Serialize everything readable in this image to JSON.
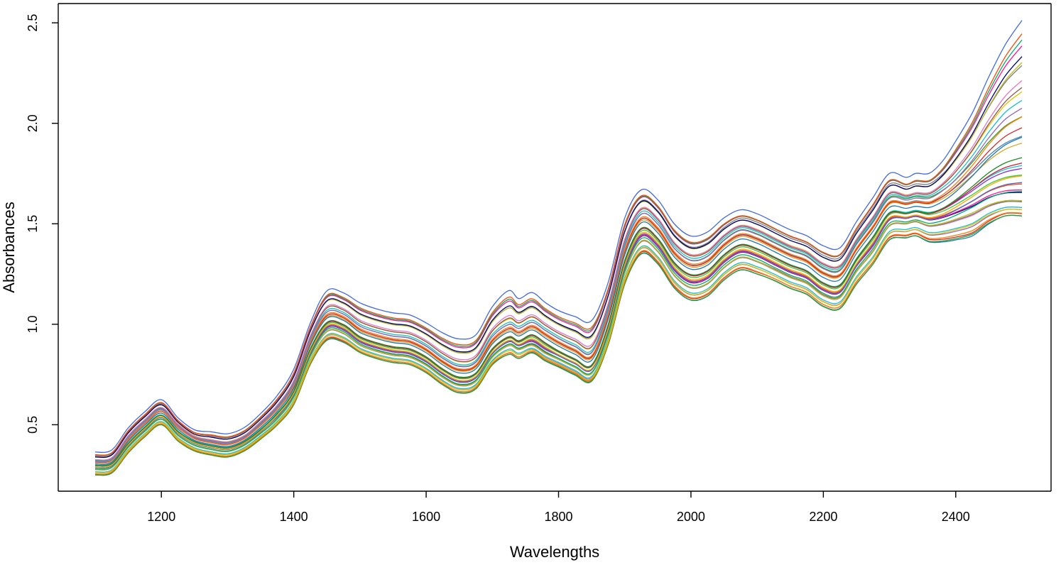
{
  "chart_data": {
    "type": "line",
    "title": "",
    "xlabel": "Wavelengths",
    "ylabel": "Absorbances",
    "xlim": [
      1100,
      2500
    ],
    "ylim": [
      0.24,
      2.55
    ],
    "x_ticks": [
      1200,
      1400,
      1600,
      1800,
      2000,
      2200,
      2400
    ],
    "x_tick_labels": [
      "1200",
      "1400",
      "1600",
      "1800",
      "2000",
      "2200",
      "2400"
    ],
    "y_ticks": [
      0.5,
      1.0,
      1.5,
      2.0,
      2.5
    ],
    "y_tick_labels": [
      "0.5",
      "1.0",
      "1.5",
      "2.0",
      "2.5"
    ],
    "grid": false,
    "legend": "none",
    "n_spectra": 40,
    "x": [
      1100,
      1125,
      1150,
      1175,
      1200,
      1225,
      1250,
      1275,
      1300,
      1325,
      1350,
      1375,
      1400,
      1425,
      1450,
      1475,
      1500,
      1525,
      1550,
      1575,
      1600,
      1625,
      1650,
      1675,
      1700,
      1725,
      1740,
      1760,
      1780,
      1800,
      1825,
      1850,
      1875,
      1900,
      1925,
      1950,
      1975,
      2000,
      2025,
      2050,
      2075,
      2100,
      2125,
      2150,
      2175,
      2200,
      2225,
      2250,
      2275,
      2300,
      2325,
      2340,
      2360,
      2380,
      2400,
      2425,
      2450,
      2475,
      2500
    ],
    "series": [
      {
        "values": [
          0.25,
          0.26,
          0.36,
          0.44,
          0.5,
          0.42,
          0.37,
          0.35,
          0.34,
          0.37,
          0.43,
          0.5,
          0.6,
          0.8,
          0.92,
          0.91,
          0.86,
          0.83,
          0.81,
          0.8,
          0.76,
          0.7,
          0.66,
          0.68,
          0.8,
          0.85,
          0.83,
          0.86,
          0.82,
          0.79,
          0.75,
          0.72,
          0.9,
          1.2,
          1.35,
          1.3,
          1.18,
          1.12,
          1.14,
          1.22,
          1.27,
          1.25,
          1.22,
          1.18,
          1.15,
          1.09,
          1.08,
          1.2,
          1.3,
          1.42,
          1.43,
          1.44,
          1.41,
          1.41,
          1.42,
          1.44,
          1.5,
          1.54,
          1.54
        ]
      },
      {
        "values": [
          0.28,
          0.29,
          0.39,
          0.47,
          0.53,
          0.45,
          0.4,
          0.38,
          0.37,
          0.4,
          0.46,
          0.53,
          0.64,
          0.84,
          0.97,
          0.96,
          0.9,
          0.87,
          0.85,
          0.84,
          0.8,
          0.74,
          0.7,
          0.72,
          0.84,
          0.9,
          0.88,
          0.9,
          0.86,
          0.83,
          0.79,
          0.76,
          0.95,
          1.26,
          1.42,
          1.37,
          1.25,
          1.19,
          1.21,
          1.29,
          1.34,
          1.32,
          1.28,
          1.24,
          1.21,
          1.15,
          1.14,
          1.27,
          1.37,
          1.5,
          1.51,
          1.52,
          1.5,
          1.51,
          1.53,
          1.56,
          1.6,
          1.62,
          1.62
        ]
      },
      {
        "values": [
          0.3,
          0.31,
          0.41,
          0.49,
          0.55,
          0.47,
          0.42,
          0.4,
          0.39,
          0.42,
          0.48,
          0.56,
          0.67,
          0.88,
          1.01,
          1.0,
          0.94,
          0.91,
          0.89,
          0.88,
          0.84,
          0.78,
          0.74,
          0.76,
          0.88,
          0.94,
          0.92,
          0.95,
          0.91,
          0.87,
          0.83,
          0.8,
          1.0,
          1.32,
          1.48,
          1.43,
          1.31,
          1.25,
          1.27,
          1.35,
          1.4,
          1.38,
          1.34,
          1.3,
          1.27,
          1.21,
          1.2,
          1.33,
          1.44,
          1.56,
          1.56,
          1.57,
          1.56,
          1.58,
          1.62,
          1.68,
          1.74,
          1.78,
          1.8
        ]
      },
      {
        "values": [
          0.32,
          0.33,
          0.44,
          0.52,
          0.58,
          0.5,
          0.44,
          0.42,
          0.41,
          0.44,
          0.51,
          0.59,
          0.71,
          0.93,
          1.07,
          1.06,
          1.0,
          0.97,
          0.95,
          0.94,
          0.9,
          0.84,
          0.8,
          0.82,
          0.95,
          1.01,
          0.99,
          1.02,
          0.98,
          0.94,
          0.9,
          0.87,
          1.08,
          1.4,
          1.56,
          1.51,
          1.39,
          1.33,
          1.35,
          1.43,
          1.48,
          1.46,
          1.42,
          1.38,
          1.35,
          1.29,
          1.28,
          1.41,
          1.52,
          1.64,
          1.63,
          1.64,
          1.64,
          1.68,
          1.74,
          1.84,
          1.96,
          2.06,
          2.12
        ]
      },
      {
        "values": [
          0.36,
          0.37,
          0.48,
          0.56,
          0.62,
          0.53,
          0.47,
          0.46,
          0.45,
          0.48,
          0.55,
          0.64,
          0.77,
          1.0,
          1.16,
          1.15,
          1.1,
          1.07,
          1.05,
          1.04,
          1.0,
          0.95,
          0.92,
          0.94,
          1.08,
          1.16,
          1.12,
          1.15,
          1.1,
          1.06,
          1.03,
          1.01,
          1.2,
          1.52,
          1.66,
          1.61,
          1.49,
          1.43,
          1.45,
          1.52,
          1.56,
          1.54,
          1.5,
          1.46,
          1.43,
          1.38,
          1.37,
          1.5,
          1.62,
          1.74,
          1.72,
          1.74,
          1.74,
          1.8,
          1.9,
          2.04,
          2.22,
          2.38,
          2.5
        ]
      }
    ]
  }
}
